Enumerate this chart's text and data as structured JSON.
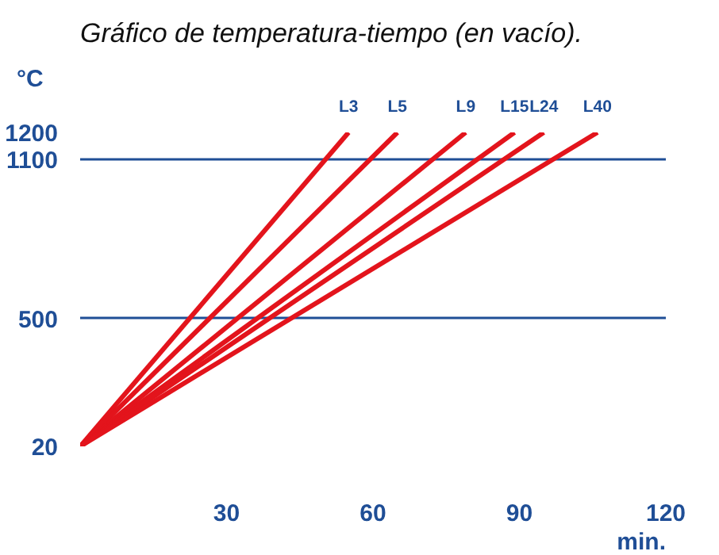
{
  "chart_data": {
    "type": "line",
    "title": "Gráfico de temperatura-tiempo (en vacío).",
    "xlabel": "min.",
    "ylabel": "°C",
    "series": [
      {
        "name": "L3",
        "color": "#e3141c",
        "x": [
          0,
          55
        ],
        "values": [
          20,
          1200
        ]
      },
      {
        "name": "L5",
        "color": "#e3141c",
        "x": [
          0,
          65
        ],
        "values": [
          20,
          1200
        ]
      },
      {
        "name": "L9",
        "color": "#e3141c",
        "x": [
          0,
          79
        ],
        "values": [
          20,
          1200
        ]
      },
      {
        "name": "L15",
        "color": "#e3141c",
        "x": [
          0,
          89
        ],
        "values": [
          20,
          1200
        ]
      },
      {
        "name": "L24",
        "color": "#e3141c",
        "x": [
          0,
          95
        ],
        "values": [
          20,
          1200
        ]
      },
      {
        "name": "L40",
        "color": "#e3141c",
        "x": [
          0,
          106
        ],
        "values": [
          20,
          1200
        ]
      }
    ],
    "xlim": [
      0,
      120
    ],
    "xticks": [
      30,
      60,
      90,
      120
    ],
    "ylim": [
      20,
      1200
    ],
    "yticks": [
      20,
      500,
      1100,
      1200
    ],
    "grid": "y",
    "marker": "none",
    "line_style": "solid"
  }
}
